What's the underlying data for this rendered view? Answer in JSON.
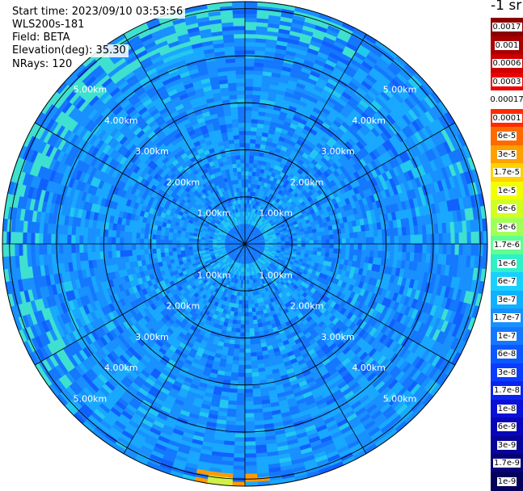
{
  "info": {
    "start_time": "Start time: 2023/09/10 03:53:56",
    "instrument": "WLS200s-181",
    "field": "Field: BETA",
    "elevation": "Elevation(deg): 35.30",
    "nrays": "NRays: 120"
  },
  "colorbar": {
    "title": "-1 sr",
    "labels": [
      "0.0017",
      "0.001",
      "0.0006",
      "0.0003",
      "0.00017",
      "0.0001",
      "6e-5",
      "3e-5",
      "1.7e-5",
      "1e-5",
      "6e-6",
      "3e-6",
      "1.7e-6",
      "1e-6",
      "6e-7",
      "3e-7",
      "1.7e-7",
      "1e-7",
      "6e-8",
      "3e-8",
      "1.7e-8",
      "1e-8",
      "6e-9",
      "3e-9",
      "1.7e-9",
      "1e-9"
    ],
    "colors": [
      "#8a0000",
      "#a80000",
      "#cc0000",
      "#ee0000",
      "#ffffff",
      "#ff2a00",
      "#ff6a00",
      "#ffa000",
      "#ffd200",
      "#f2ff00",
      "#d0ff20",
      "#a0ff58",
      "#60ff90",
      "#2ff0c8",
      "#18d0ff",
      "#10b0ff",
      "#1890ff",
      "#1478ff",
      "#0b58ff",
      "#0a3cff",
      "#0a24f0",
      "#0a10d8",
      "#0806b8",
      "#080498",
      "#060278",
      "#04015a"
    ]
  },
  "chart_data": {
    "type": "heatmap",
    "projection": "polar (PPI)",
    "field": "BETA",
    "nrays": 120,
    "elevation_deg": 35.3,
    "range_rings_km": [
      1,
      2,
      3,
      4,
      5
    ],
    "ring_labels": [
      "1.00km",
      "2.00km",
      "3.00km",
      "4.00km",
      "5.00km"
    ],
    "max_range_km": 5.15,
    "spokes_deg": [
      0,
      30,
      60,
      90,
      120,
      150,
      180,
      210,
      240,
      270,
      300,
      330
    ],
    "color_scale": "log",
    "value_range": [
      1e-09,
      0.0017
    ],
    "dominant_value": "1e-7",
    "notable_features": [
      {
        "description": "low backscatter core",
        "range_km": [
          0,
          0.4
        ],
        "value": "1.7e-8"
      },
      {
        "description": "higher values at far edge, west and north",
        "range_km": [
          4.5,
          5.15
        ],
        "value": "1e-6"
      },
      {
        "description": "small hotspot near south edge",
        "azimuth_deg": 185,
        "range_km": 5.0,
        "value": "3e-5"
      }
    ]
  }
}
